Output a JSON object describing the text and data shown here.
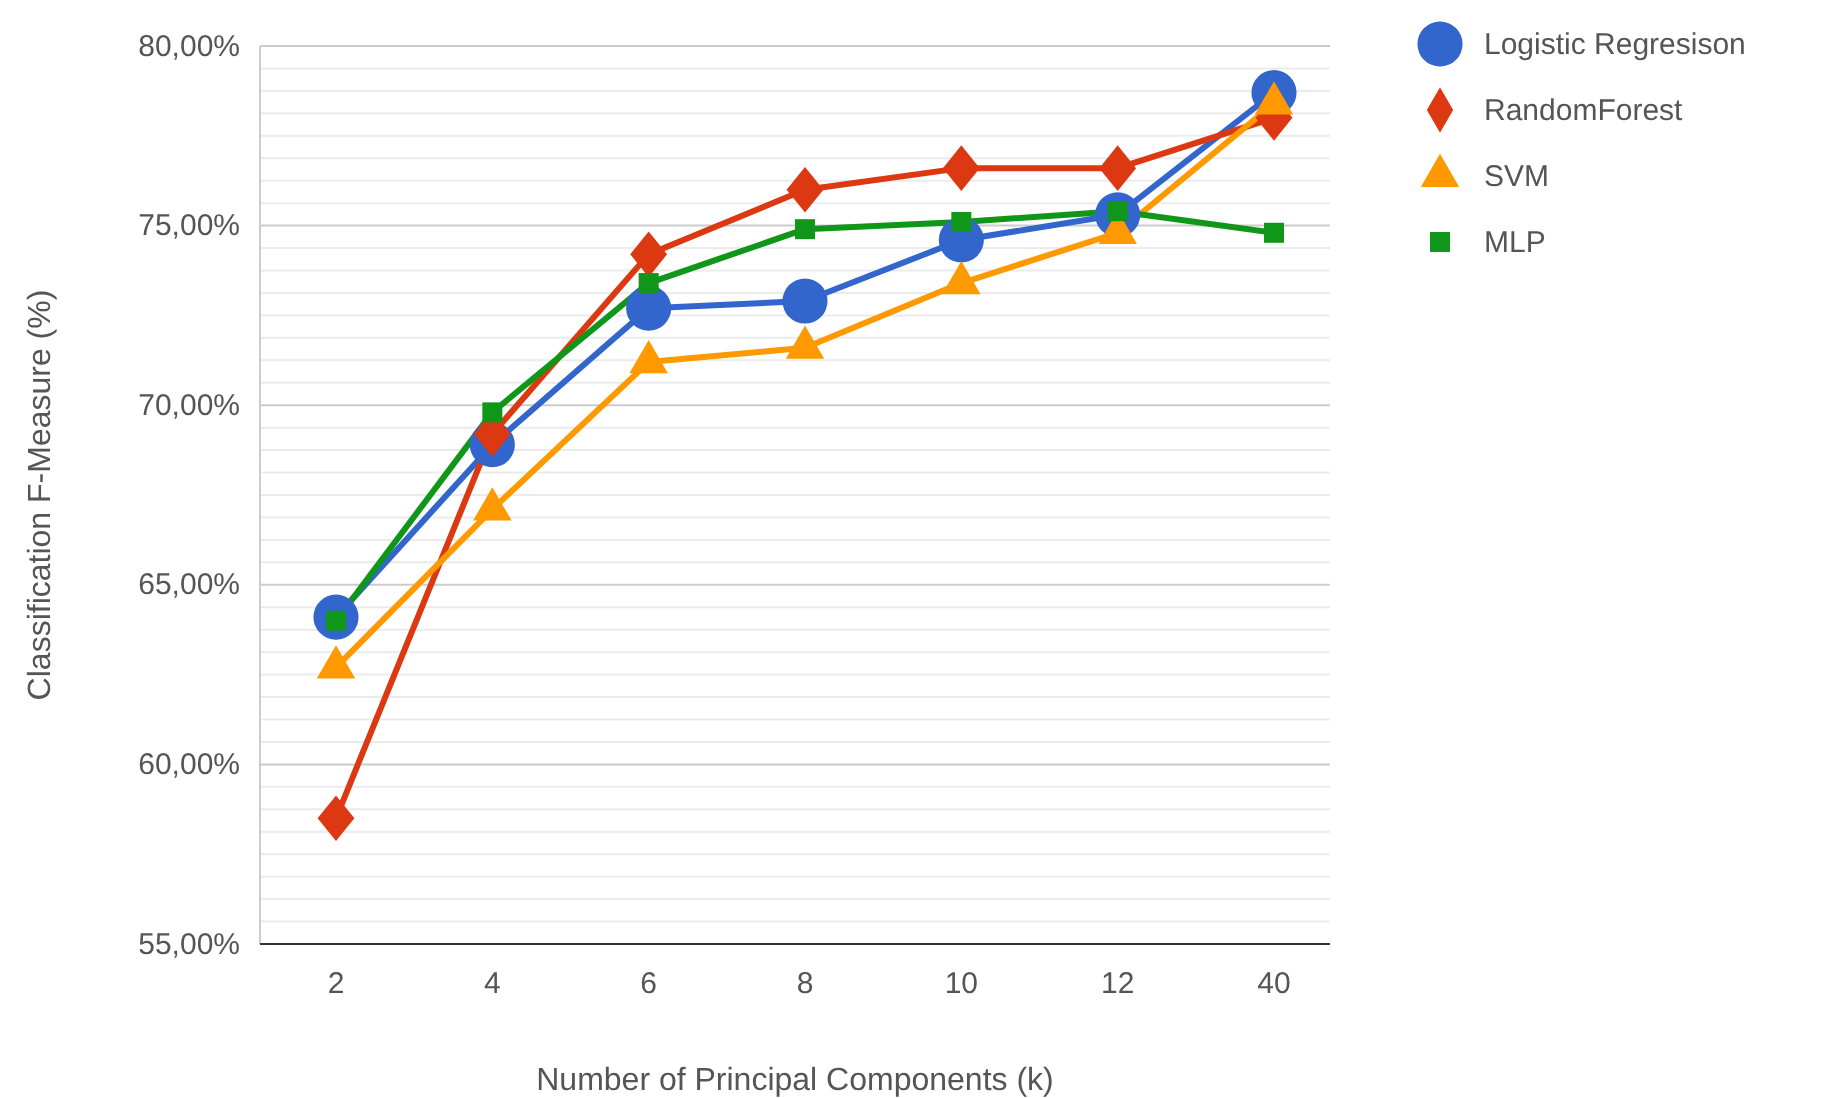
{
  "chart_data": {
    "type": "line",
    "xlabel": "Number of Principal Components (k)",
    "ylabel": "Classification F-Measure (%)",
    "categories": [
      "2",
      "4",
      "6",
      "8",
      "10",
      "12",
      "40"
    ],
    "ylim": [
      55,
      80
    ],
    "yticks": [
      {
        "value": 55,
        "label": "55,00%"
      },
      {
        "value": 60,
        "label": "60,00%"
      },
      {
        "value": 65,
        "label": "65,00%"
      },
      {
        "value": 70,
        "label": "70,00%"
      },
      {
        "value": 75,
        "label": "75,00%"
      },
      {
        "value": 80,
        "label": "80,00%"
      }
    ],
    "grid": "y",
    "legend": "right",
    "series": [
      {
        "name": "Logistic Regresison",
        "color": "#3366cc",
        "marker": "circle",
        "values": [
          64.1,
          68.9,
          72.7,
          72.9,
          74.6,
          75.3,
          78.7
        ]
      },
      {
        "name": "RandomForest",
        "color": "#dc3912",
        "marker": "diamond",
        "values": [
          58.5,
          69.2,
          74.2,
          76.0,
          76.6,
          76.6,
          78.0
        ]
      },
      {
        "name": "SVM",
        "color": "#ff9900",
        "marker": "triangle",
        "values": [
          62.7,
          67.1,
          71.2,
          71.6,
          73.4,
          74.8,
          78.4
        ]
      },
      {
        "name": "MLP",
        "color": "#109618",
        "marker": "square",
        "values": [
          64.0,
          69.8,
          73.4,
          74.9,
          75.1,
          75.4,
          74.8
        ]
      }
    ]
  }
}
